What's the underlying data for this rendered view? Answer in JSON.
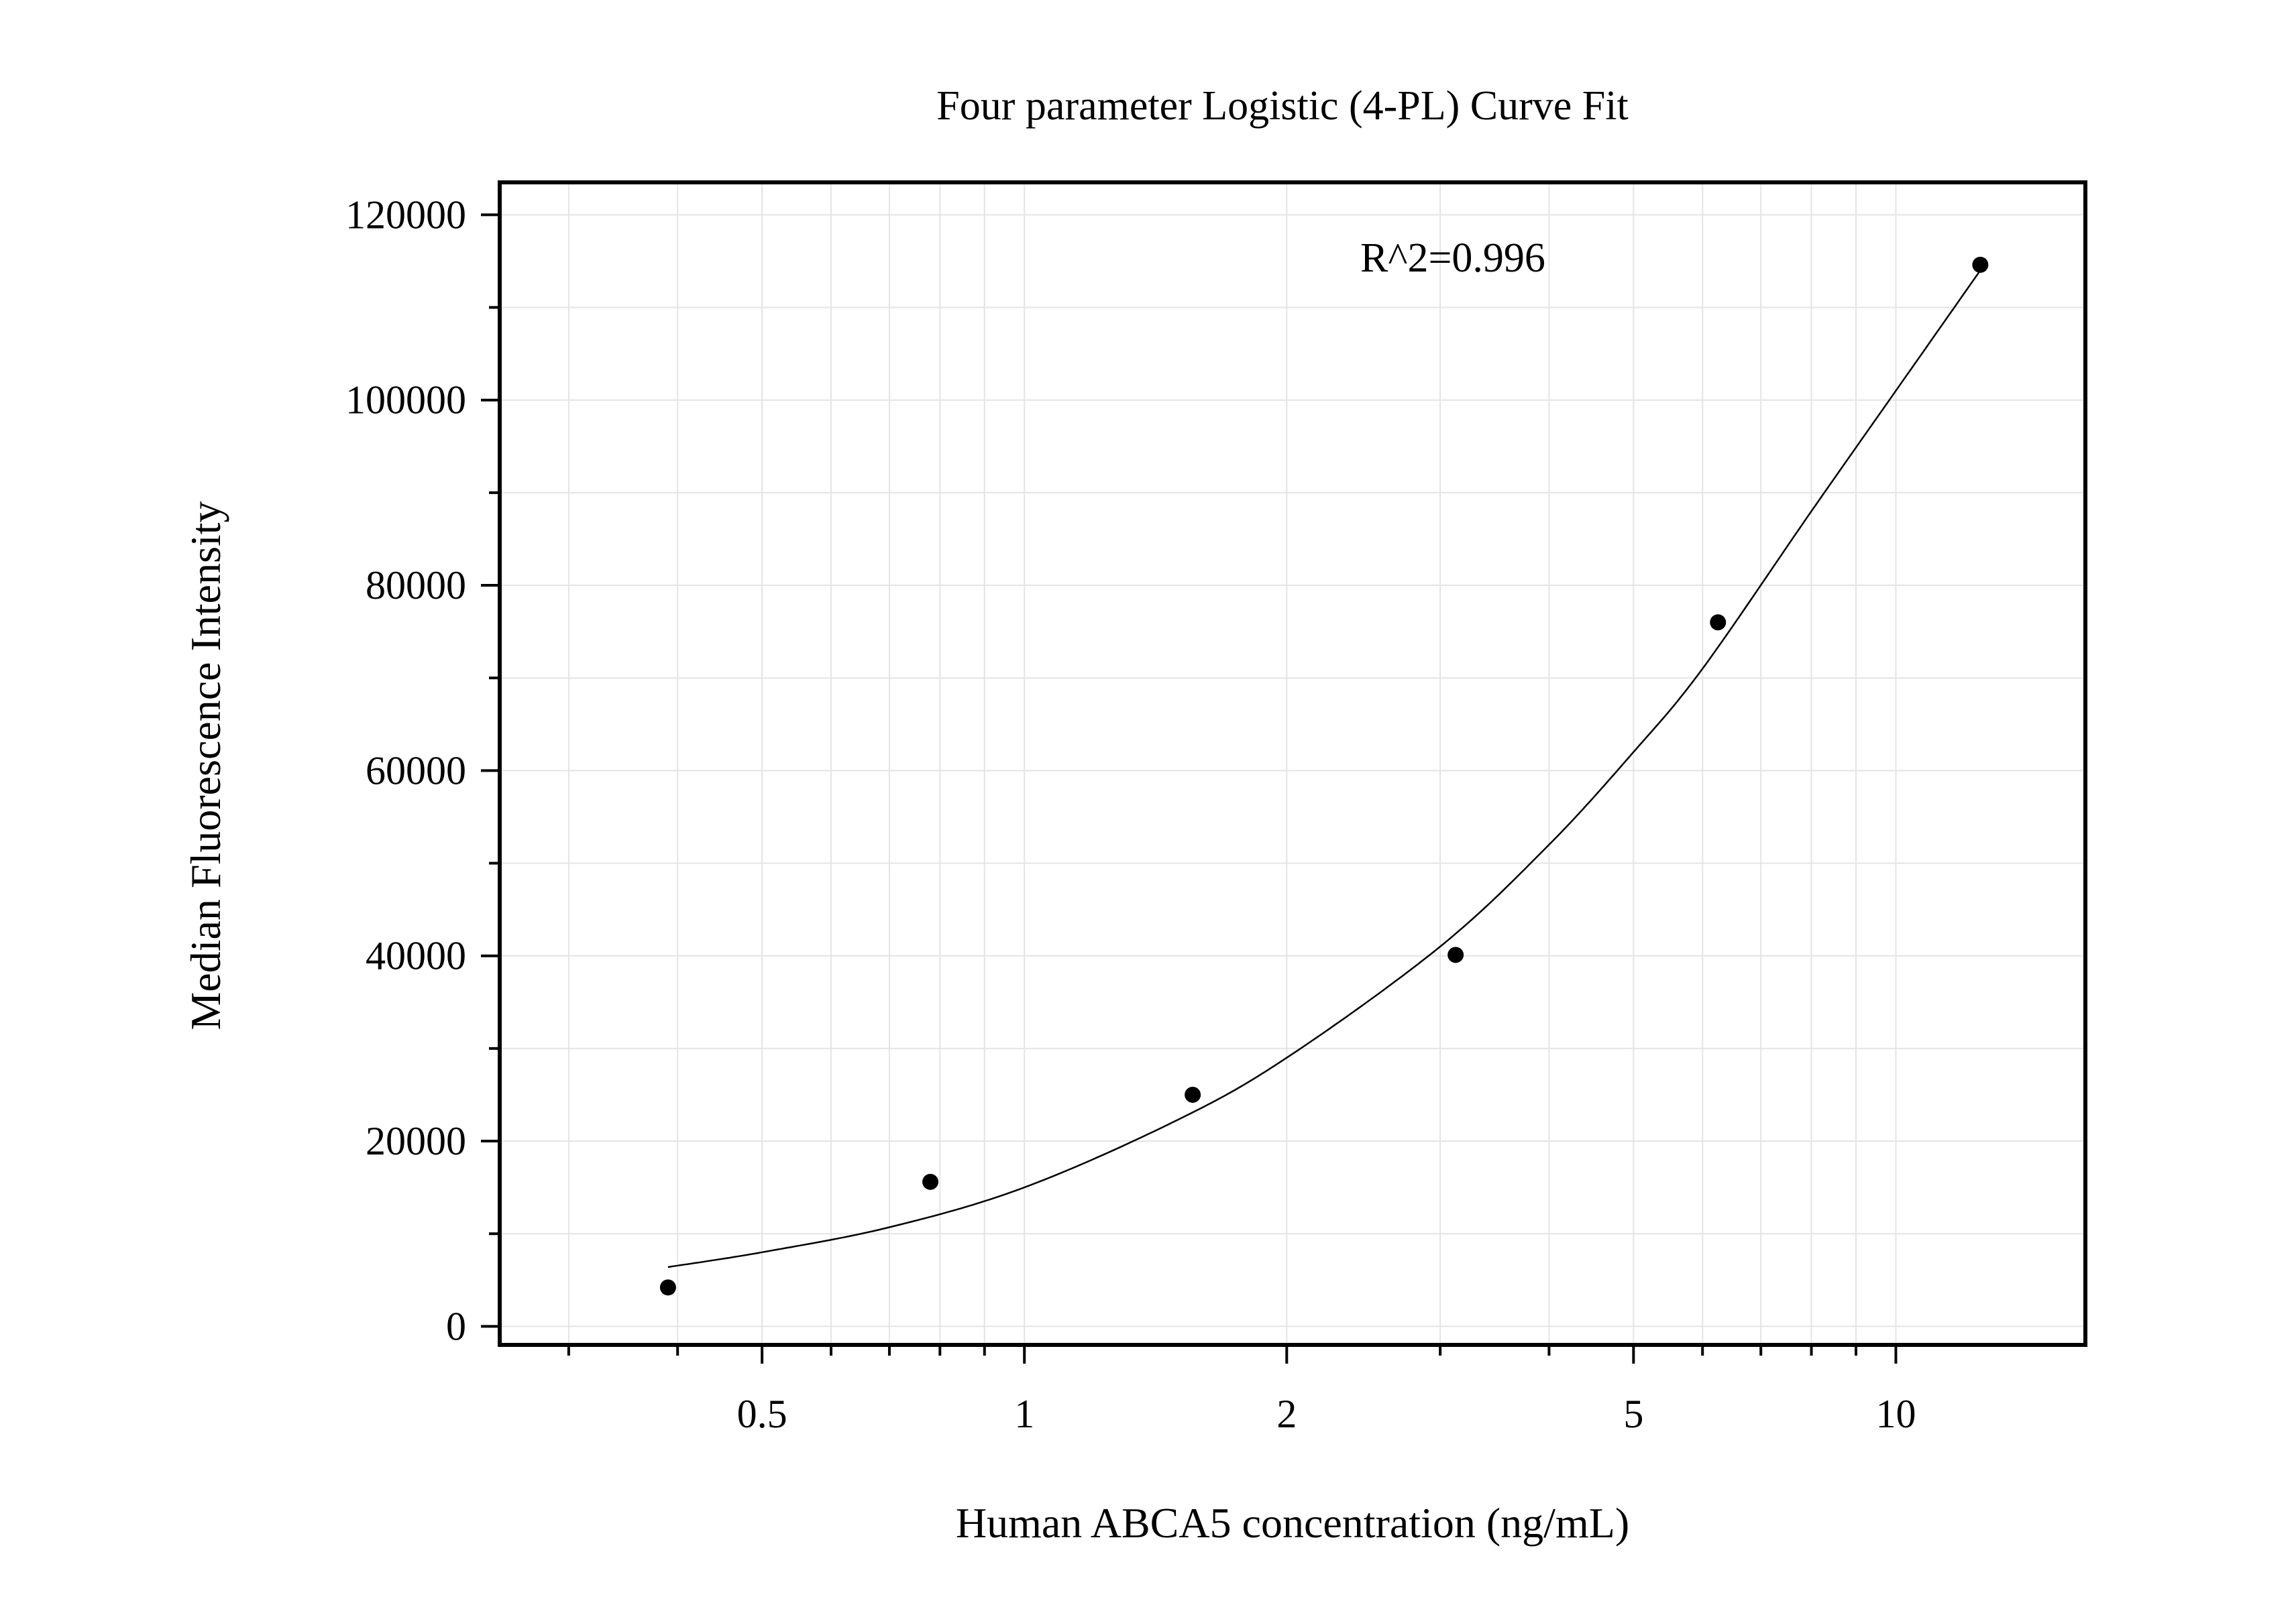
{
  "chart_data": {
    "type": "scatter",
    "title": "Four parameter Logistic (4-PL) Curve Fit",
    "xlabel": "Human ABCA5 concentration (ng/mL)",
    "ylabel": "Median Fluorescence Intensity",
    "x_scale": "log",
    "xlim": [
      0.25,
      16.5
    ],
    "ylim": [
      -2000,
      123500
    ],
    "x_major_ticks": [
      0.5,
      1,
      2,
      5,
      10
    ],
    "x_tick_labels": [
      "0.5",
      "1",
      "2",
      "5",
      "10"
    ],
    "y_major_ticks": [
      0,
      20000,
      40000,
      60000,
      80000,
      100000,
      120000
    ],
    "y_tick_labels": [
      "0",
      "20000",
      "40000",
      "60000",
      "80000",
      "100000",
      "120000"
    ],
    "grid": true,
    "annotation": "R^2=0.996",
    "series": [
      {
        "kind": "points",
        "x": [
          0.39,
          0.78,
          1.56,
          3.125,
          6.25,
          12.5
        ],
        "y": [
          4200,
          15600,
          25000,
          40100,
          76000,
          114600
        ]
      },
      {
        "kind": "fit",
        "x": [
          0.39,
          0.5,
          0.7,
          1.0,
          1.5,
          2.0,
          3.0,
          4.0,
          5.0,
          6.0,
          8.0,
          10.0,
          12.5
        ],
        "y": [
          6400,
          8000,
          10700,
          15000,
          22300,
          29000,
          41000,
          52000,
          62000,
          71000,
          88000,
          101000,
          114000
        ]
      }
    ]
  }
}
